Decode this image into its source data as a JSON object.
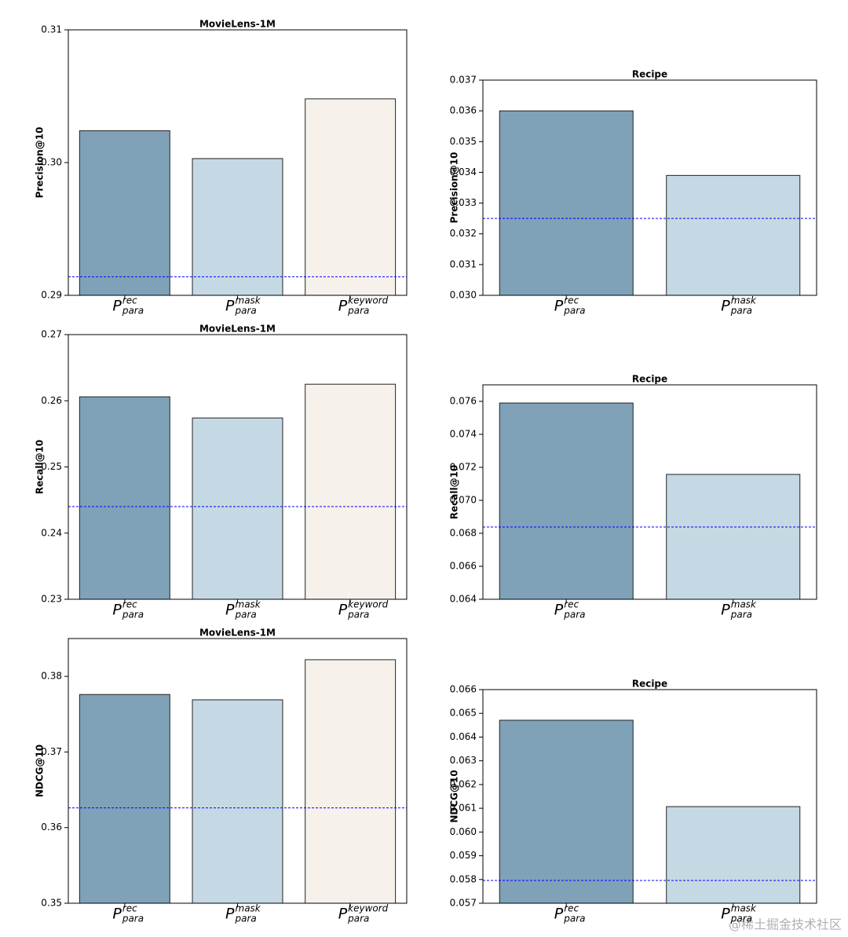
{
  "chart_data": [
    {
      "type": "bar",
      "title": "MovieLens-1M",
      "y_label": "Precision@10",
      "categories": [
        {
          "base": "P",
          "sup": "rec",
          "sub": "para"
        },
        {
          "base": "P",
          "sup": "mask",
          "sub": "para"
        },
        {
          "base": "P",
          "sup": "keyword",
          "sub": "para"
        }
      ],
      "values": [
        0.3024,
        0.3003,
        0.3048
      ],
      "colors": [
        "#7fa2b8",
        "#c5d9e4",
        "#f7f1eb"
      ],
      "ylim": [
        0.29,
        0.31
      ],
      "yticks": [
        0.29,
        {
          "value": 0.3,
          "label": "0.30"
        },
        0.31
      ],
      "reference_line": {
        "value": 0.2914,
        "color": "#0000ff"
      }
    },
    {
      "type": "bar",
      "title": "Recipe",
      "y_label": "Precision@10",
      "categories": [
        {
          "base": "P",
          "sup": "rec",
          "sub": "para"
        },
        {
          "base": "P",
          "sup": "mask",
          "sub": "para"
        }
      ],
      "values": [
        0.036,
        0.0339
      ],
      "colors": [
        "#7fa2b8",
        "#c5d9e4"
      ],
      "ylim": [
        0.03,
        0.037
      ],
      "yticks": [
        {
          "value": 0.03,
          "label": "0.030"
        },
        0.031,
        0.032,
        0.033,
        0.034,
        0.035,
        0.036,
        0.037
      ],
      "reference_line": {
        "value": 0.0325,
        "color": "#0000ff"
      }
    },
    {
      "type": "bar",
      "title": "MovieLens-1M",
      "y_label": "Recall@10",
      "categories": [
        {
          "base": "P",
          "sup": "rec",
          "sub": "para"
        },
        {
          "base": "P",
          "sup": "mask",
          "sub": "para"
        },
        {
          "base": "P",
          "sup": "keyword",
          "sub": "para"
        }
      ],
      "values": [
        0.2606,
        0.2574,
        0.2625
      ],
      "colors": [
        "#7fa2b8",
        "#c5d9e4",
        "#f7f1eb"
      ],
      "ylim": [
        0.23,
        0.27
      ],
      "yticks": [
        0.23,
        0.24,
        0.25,
        0.26,
        0.27
      ],
      "reference_line": {
        "value": 0.244,
        "color": "#0000ff"
      }
    },
    {
      "type": "bar",
      "title": "Recipe",
      "y_label": "Recall@10",
      "categories": [
        {
          "base": "P",
          "sup": "rec",
          "sub": "para"
        },
        {
          "base": "P",
          "sup": "mask",
          "sub": "para"
        }
      ],
      "values": [
        0.0759,
        0.07157
      ],
      "colors": [
        "#7fa2b8",
        "#c5d9e4"
      ],
      "ylim": [
        0.064,
        0.077
      ],
      "yticks": [
        0.064,
        0.066,
        0.068,
        {
          "value": 0.07,
          "label": "0.070"
        },
        0.072,
        0.074,
        0.076
      ],
      "reference_line": {
        "value": 0.06838,
        "color": "#0000ff"
      }
    },
    {
      "type": "bar",
      "title": "MovieLens-1M",
      "y_label": "NDCG@10",
      "categories": [
        {
          "base": "P",
          "sup": "rec",
          "sub": "para"
        },
        {
          "base": "P",
          "sup": "mask",
          "sub": "para"
        },
        {
          "base": "P",
          "sup": "keyword",
          "sub": "para"
        }
      ],
      "values": [
        0.3776,
        0.3769,
        0.3822
      ],
      "colors": [
        "#7fa2b8",
        "#c5d9e4",
        "#f7f1eb"
      ],
      "ylim": [
        0.35,
        0.385
      ],
      "yticks": [
        0.35,
        0.36,
        0.37,
        0.38
      ],
      "reference_line": {
        "value": 0.3626,
        "color": "#0000ff"
      }
    },
    {
      "type": "bar",
      "title": "Recipe",
      "y_label": "NDCG@10",
      "categories": [
        {
          "base": "P",
          "sup": "rec",
          "sub": "para"
        },
        {
          "base": "P",
          "sup": "mask",
          "sub": "para"
        }
      ],
      "values": [
        0.06471,
        0.06107
      ],
      "colors": [
        "#7fa2b8",
        "#c5d9e4"
      ],
      "ylim": [
        0.057,
        0.066
      ],
      "yticks": [
        0.057,
        0.058,
        0.059,
        {
          "value": 0.06,
          "label": "0.060"
        },
        0.061,
        0.062,
        0.063,
        0.064,
        0.065,
        0.066
      ],
      "reference_line": {
        "value": 0.05796,
        "color": "#0000ff"
      }
    }
  ],
  "watermark": "@稀土掘金技术社区"
}
